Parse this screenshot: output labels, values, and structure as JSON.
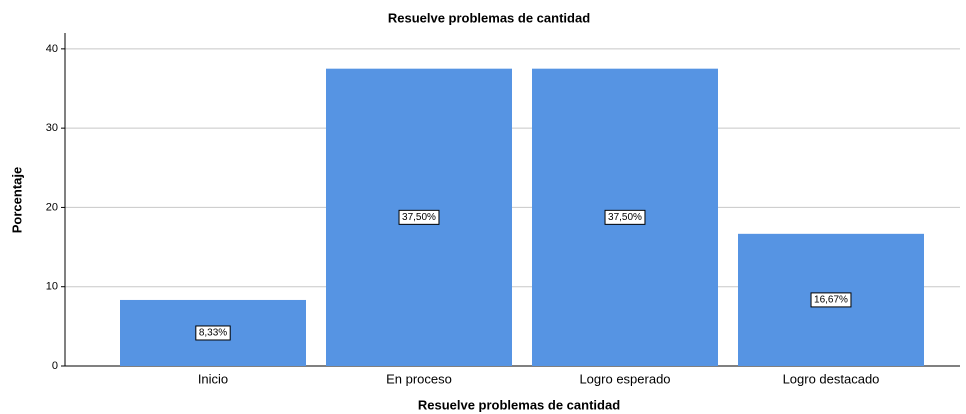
{
  "chart_data": {
    "type": "bar",
    "title": "Resuelve problemas de cantidad",
    "x_label": "Resuelve problemas de cantidad",
    "y_label": "Porcentaje",
    "categories": [
      "Inicio",
      "En proceso",
      "Logro esperado",
      "Logro destacado"
    ],
    "values": [
      8.33,
      37.5,
      37.5,
      16.67
    ],
    "value_labels": [
      "8,33%",
      "37,50%",
      "37,50%",
      "16,67%"
    ],
    "color": "#5694e3",
    "ylim": [
      0,
      42
    ],
    "yticks": [
      0,
      10,
      20,
      30,
      40
    ],
    "grid": true
  }
}
